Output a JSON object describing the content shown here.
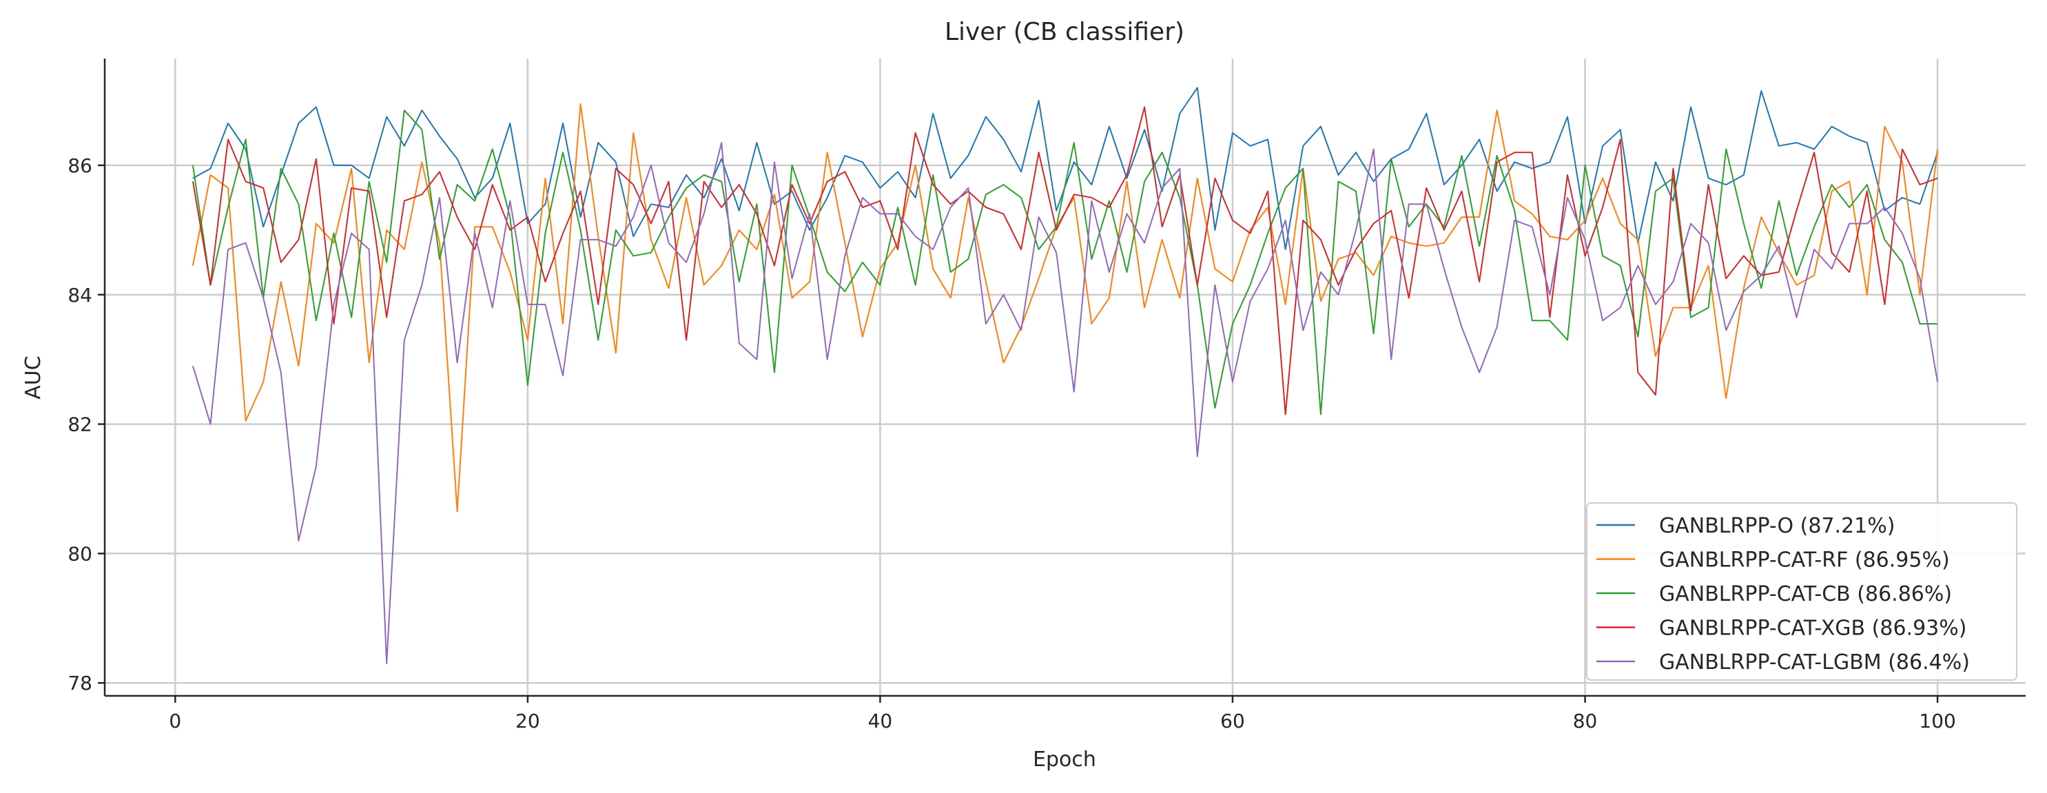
{
  "chart_data": {
    "type": "line",
    "title": "Liver (CB classifier)",
    "xlabel": "Epoch",
    "ylabel": "AUC",
    "xlim": [
      -4,
      105
    ],
    "ylim": [
      77.8,
      87.65
    ],
    "xticks": [
      0,
      20,
      40,
      60,
      80,
      100
    ],
    "yticks": [
      78,
      80,
      82,
      84,
      86
    ],
    "grid": true,
    "legend_position": "lower-right",
    "x": [
      1,
      2,
      3,
      4,
      5,
      6,
      7,
      8,
      9,
      10,
      11,
      12,
      13,
      14,
      15,
      16,
      17,
      18,
      19,
      20,
      21,
      22,
      23,
      24,
      25,
      26,
      27,
      28,
      29,
      30,
      31,
      32,
      33,
      34,
      35,
      36,
      37,
      38,
      39,
      40,
      41,
      42,
      43,
      44,
      45,
      46,
      47,
      48,
      49,
      50,
      51,
      52,
      53,
      54,
      55,
      56,
      57,
      58,
      59,
      60,
      61,
      62,
      63,
      64,
      65,
      66,
      67,
      68,
      69,
      70,
      71,
      72,
      73,
      74,
      75,
      76,
      77,
      78,
      79,
      80,
      81,
      82,
      83,
      84,
      85,
      86,
      87,
      88,
      89,
      90,
      91,
      92,
      93,
      94,
      95,
      96,
      97,
      98,
      99,
      100
    ],
    "series": [
      {
        "name": "GANBLRPP-O (87.21%)",
        "color": "#1f77b4",
        "values": [
          85.8,
          85.95,
          86.65,
          86.25,
          85.05,
          85.85,
          86.65,
          86.9,
          86.0,
          86.0,
          85.8,
          86.75,
          86.3,
          86.85,
          86.45,
          86.1,
          85.5,
          85.8,
          86.65,
          85.1,
          85.4,
          86.65,
          85.2,
          86.35,
          86.05,
          84.9,
          85.4,
          85.35,
          85.85,
          85.5,
          86.1,
          85.3,
          86.35,
          85.4,
          85.6,
          85.0,
          85.5,
          86.15,
          86.05,
          85.65,
          85.9,
          85.5,
          86.8,
          85.8,
          86.15,
          86.75,
          86.4,
          85.9,
          87.0,
          85.3,
          86.05,
          85.7,
          86.6,
          85.8,
          86.55,
          85.6,
          86.8,
          87.2,
          85.0,
          86.5,
          86.3,
          86.4,
          84.7,
          86.3,
          86.6,
          85.85,
          86.2,
          85.75,
          86.1,
          86.25,
          86.8,
          85.7,
          86.0,
          86.4,
          85.6,
          86.05,
          85.95,
          86.05,
          86.75,
          85.1,
          86.3,
          86.55,
          84.8,
          86.05,
          85.45,
          86.9,
          85.8,
          85.7,
          85.85,
          87.15,
          86.3,
          86.35,
          86.25,
          86.6,
          86.45,
          86.35,
          85.3,
          85.5,
          85.4,
          86.2
        ]
      },
      {
        "name": "GANBLRPP-CAT-RF (86.95%)",
        "color": "#ff7f0e",
        "values": [
          84.45,
          85.85,
          85.65,
          82.05,
          82.65,
          84.2,
          82.9,
          85.1,
          84.8,
          85.95,
          82.95,
          85.0,
          84.7,
          86.05,
          84.8,
          80.65,
          85.05,
          85.05,
          84.35,
          83.3,
          85.8,
          83.55,
          86.95,
          84.9,
          83.1,
          86.5,
          84.85,
          84.1,
          85.5,
          84.15,
          84.45,
          85.0,
          84.7,
          85.55,
          83.95,
          84.2,
          86.2,
          84.8,
          83.35,
          84.4,
          84.8,
          86.0,
          84.4,
          83.95,
          85.5,
          84.2,
          82.95,
          83.5,
          84.25,
          85.05,
          85.5,
          83.55,
          83.95,
          85.75,
          83.8,
          84.85,
          83.95,
          85.8,
          84.4,
          84.2,
          85.0,
          85.35,
          83.85,
          85.95,
          83.9,
          84.55,
          84.65,
          84.3,
          84.9,
          84.8,
          84.75,
          84.8,
          85.2,
          85.2,
          86.85,
          85.45,
          85.25,
          84.9,
          84.85,
          85.15,
          85.8,
          85.1,
          84.85,
          83.05,
          83.8,
          83.8,
          84.45,
          82.4,
          84.1,
          85.2,
          84.65,
          84.15,
          84.3,
          85.6,
          85.75,
          84.0,
          86.6,
          86.05,
          84.0,
          86.25
        ]
      },
      {
        "name": "GANBLRPP-CAT-CB (86.86%)",
        "color": "#2ca02c",
        "values": [
          86.0,
          84.15,
          85.35,
          86.4,
          83.95,
          85.95,
          85.4,
          83.6,
          84.95,
          83.65,
          85.75,
          84.5,
          86.85,
          86.55,
          84.55,
          85.7,
          85.45,
          86.25,
          85.2,
          82.6,
          84.95,
          86.2,
          85.0,
          83.3,
          85.0,
          84.6,
          84.65,
          85.2,
          85.65,
          85.85,
          85.75,
          84.2,
          85.4,
          82.8,
          86.0,
          85.2,
          84.35,
          84.05,
          84.5,
          84.15,
          85.35,
          84.15,
          85.85,
          84.35,
          84.55,
          85.55,
          85.7,
          85.5,
          84.7,
          85.05,
          86.35,
          84.55,
          85.45,
          84.35,
          85.75,
          86.2,
          85.5,
          84.15,
          82.25,
          83.55,
          84.15,
          84.95,
          85.65,
          85.95,
          82.15,
          85.75,
          85.6,
          83.4,
          86.1,
          85.05,
          85.4,
          85.05,
          86.15,
          84.75,
          86.15,
          85.3,
          83.6,
          83.6,
          83.3,
          86.0,
          84.6,
          84.45,
          83.35,
          85.6,
          85.8,
          83.65,
          83.8,
          86.25,
          85.1,
          84.1,
          85.45,
          84.3,
          85.05,
          85.7,
          85.35,
          85.7,
          84.85,
          84.5,
          83.55,
          83.55
        ]
      },
      {
        "name": "GANBLRPP-CAT-XGB (86.93%)",
        "color": "#d62728",
        "values": [
          85.75,
          84.15,
          86.4,
          85.75,
          85.65,
          84.5,
          84.85,
          86.1,
          83.55,
          85.65,
          85.6,
          83.65,
          85.45,
          85.55,
          85.9,
          85.2,
          84.7,
          85.7,
          85.0,
          85.2,
          84.2,
          84.95,
          85.6,
          83.85,
          85.95,
          85.7,
          85.1,
          85.75,
          83.3,
          85.75,
          85.35,
          85.7,
          85.25,
          84.45,
          85.7,
          85.1,
          85.75,
          85.9,
          85.35,
          85.45,
          84.7,
          86.5,
          85.7,
          85.4,
          85.6,
          85.35,
          85.25,
          84.7,
          86.2,
          85.0,
          85.55,
          85.5,
          85.35,
          85.85,
          86.9,
          85.05,
          85.85,
          84.15,
          85.8,
          85.15,
          84.95,
          85.6,
          82.15,
          85.15,
          84.85,
          84.15,
          84.7,
          85.1,
          85.3,
          83.95,
          85.65,
          85.0,
          85.6,
          84.2,
          86.05,
          86.2,
          86.2,
          83.65,
          85.85,
          84.6,
          85.35,
          86.4,
          82.8,
          82.45,
          85.95,
          83.75,
          85.7,
          84.25,
          84.6,
          84.3,
          84.35,
          85.3,
          86.2,
          84.65,
          84.35,
          85.6,
          83.85,
          86.25,
          85.7,
          85.8
        ]
      },
      {
        "name": "GANBLRPP-CAT-LGBM (86.4%)",
        "color": "#9467bd",
        "values": [
          82.9,
          82.0,
          84.7,
          84.8,
          83.95,
          82.8,
          80.2,
          81.35,
          83.85,
          84.95,
          84.7,
          78.3,
          83.3,
          84.15,
          85.5,
          82.95,
          84.95,
          83.8,
          85.45,
          83.85,
          83.85,
          82.75,
          84.85,
          84.85,
          84.75,
          85.2,
          86.0,
          84.8,
          84.5,
          85.25,
          86.35,
          83.25,
          83.0,
          86.05,
          84.25,
          85.25,
          83.0,
          84.6,
          85.5,
          85.25,
          85.25,
          84.9,
          84.7,
          85.35,
          85.65,
          83.55,
          84.0,
          83.45,
          85.2,
          84.65,
          82.5,
          85.45,
          84.35,
          85.25,
          84.8,
          85.65,
          85.95,
          81.5,
          84.15,
          82.65,
          83.9,
          84.4,
          85.15,
          83.45,
          84.35,
          84.0,
          85.0,
          86.25,
          83.0,
          85.4,
          85.4,
          84.4,
          83.5,
          82.8,
          83.5,
          85.15,
          85.05,
          84.0,
          85.5,
          84.85,
          83.6,
          83.8,
          84.45,
          83.85,
          84.2,
          85.1,
          84.8,
          83.45,
          84.05,
          84.3,
          84.75,
          83.65,
          84.7,
          84.4,
          85.1,
          85.1,
          85.35,
          84.95,
          84.25,
          82.65
        ]
      }
    ]
  }
}
